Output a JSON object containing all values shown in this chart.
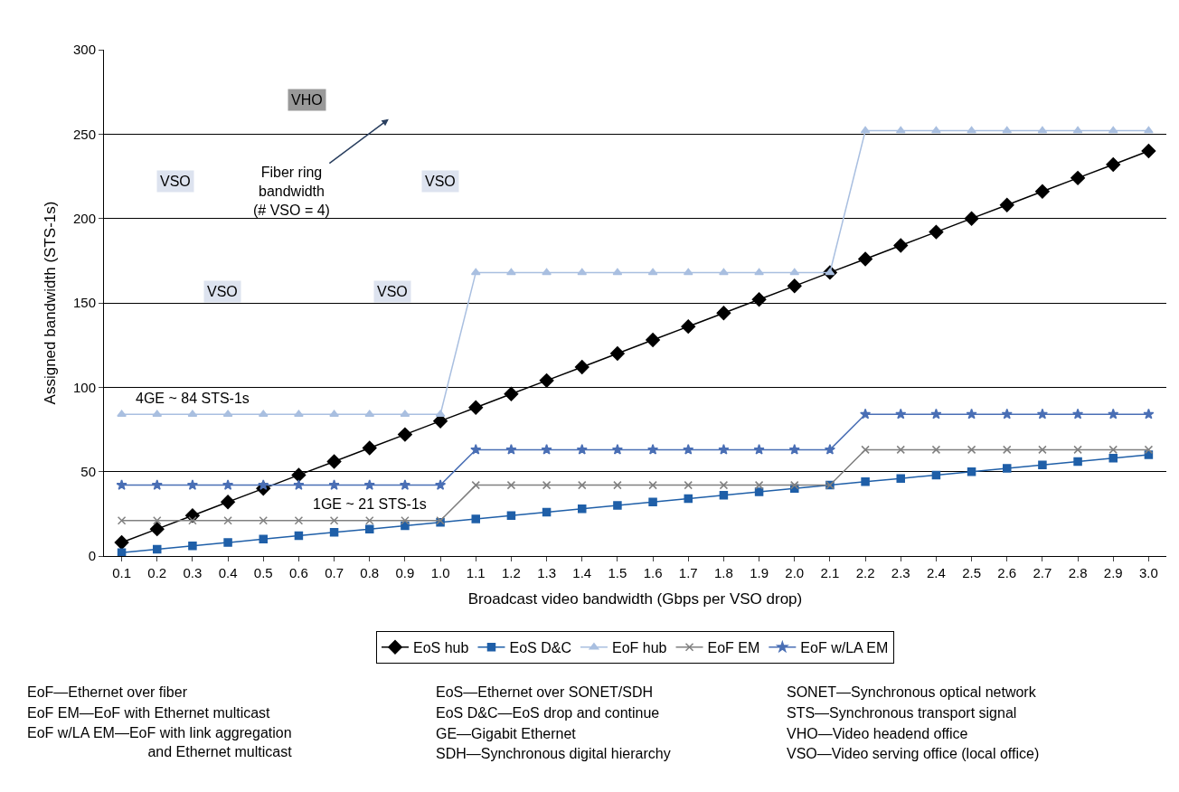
{
  "chart_data": {
    "type": "line",
    "xlabel": "Broadcast video bandwidth (Gbps per VSO drop)",
    "ylabel": "Assigned bandwidth (STS-1s)",
    "categories": [
      "0.1",
      "0.2",
      "0.3",
      "0.4",
      "0.5",
      "0.6",
      "0.7",
      "0.8",
      "0.9",
      "1.0",
      "1.1",
      "1.2",
      "1.3",
      "1.4",
      "1.5",
      "1.6",
      "1.7",
      "1.8",
      "1.9",
      "2.0",
      "2.1",
      "2.2",
      "2.3",
      "2.4",
      "2.5",
      "2.6",
      "2.7",
      "2.8",
      "2.9",
      "3.0"
    ],
    "series": [
      {
        "name": "EoS hub",
        "color": "#000000",
        "marker": "diamond",
        "values": [
          8,
          16,
          24,
          32,
          40,
          48,
          56,
          64,
          72,
          80,
          88,
          96,
          104,
          112,
          120,
          128,
          136,
          144,
          152,
          160,
          168,
          176,
          184,
          192,
          200,
          208,
          216,
          224,
          232,
          240
        ]
      },
      {
        "name": "EoS D&C",
        "color": "#1f5fa8",
        "marker": "square",
        "values": [
          2,
          4,
          6,
          8,
          10,
          12,
          14,
          16,
          18,
          20,
          22,
          24,
          26,
          28,
          30,
          32,
          34,
          36,
          38,
          40,
          42,
          44,
          46,
          48,
          50,
          52,
          54,
          56,
          58,
          60
        ]
      },
      {
        "name": "EoF hub",
        "color": "#a9bfe0",
        "marker": "triangle",
        "values": [
          84,
          84,
          84,
          84,
          84,
          84,
          84,
          84,
          84,
          84,
          168,
          168,
          168,
          168,
          168,
          168,
          168,
          168,
          168,
          168,
          168,
          252,
          252,
          252,
          252,
          252,
          252,
          252,
          252,
          252
        ]
      },
      {
        "name": "EoF EM",
        "color": "#808080",
        "marker": "cross",
        "values": [
          21,
          21,
          21,
          21,
          21,
          21,
          21,
          21,
          21,
          21,
          42,
          42,
          42,
          42,
          42,
          42,
          42,
          42,
          42,
          42,
          42,
          63,
          63,
          63,
          63,
          63,
          63,
          63,
          63,
          63
        ]
      },
      {
        "name": "EoF w/LA EM",
        "color": "#4a6fb5",
        "marker": "star",
        "values": [
          42,
          42,
          42,
          42,
          42,
          42,
          42,
          42,
          42,
          42,
          63,
          63,
          63,
          63,
          63,
          63,
          63,
          63,
          63,
          63,
          63,
          84,
          84,
          84,
          84,
          84,
          84,
          84,
          84,
          84
        ]
      }
    ],
    "ylim": [
      0,
      300
    ],
    "yticks": [
      0,
      50,
      100,
      150,
      200,
      250,
      300
    ],
    "grid": "y",
    "legend": "bottom",
    "annotations": [
      {
        "text": "4GE ~ 84 STS-1s",
        "x": "0.3",
        "y": 84
      },
      {
        "text": "1GE ~ 21 STS-1s",
        "x": "0.8",
        "y": 21
      },
      "VHO",
      "VSO",
      "VSO",
      "VSO",
      "VSO",
      "Fiber ring\nbandwidth\n(# VSO = 4)",
      "EoF—Ethernet over fiber",
      "EoF EM—EoF with Ethernet multicast",
      "EoF w/LA EM—EoF with link aggregation\nand Ethernet multicast",
      "EoS—Ethernet over SONET/SDH",
      "EoS D&C—EoS drop and continue",
      "GE—Gigabit Ethernet",
      "SDH—Synchronous digital hierarchy",
      "SONET—Synchronous optical network",
      "STS—Synchronous transport signal",
      "VHO—Video headend office",
      "VSO—Video serving office (local office)"
    ]
  }
}
